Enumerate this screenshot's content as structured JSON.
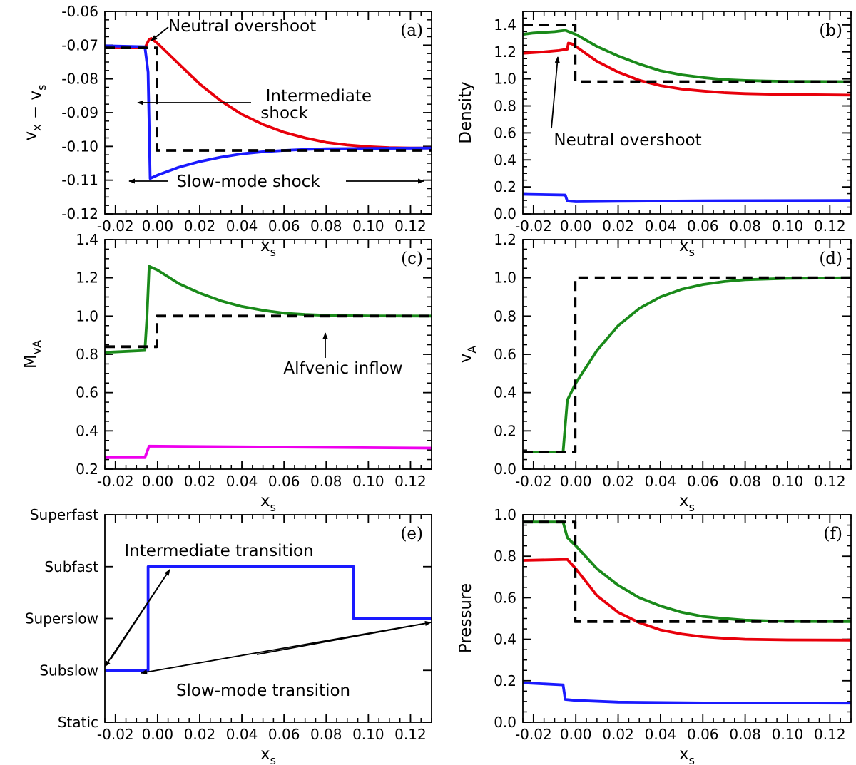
{
  "chart_data": [
    {
      "panel": "(a)",
      "type": "line",
      "ylabel": "v_x − v_s",
      "xlabel": "x_s",
      "xlim": [
        -0.025,
        0.13
      ],
      "ylim": [
        -0.12,
        -0.06
      ],
      "xticks": [
        -0.02,
        0.0,
        0.02,
        0.04,
        0.06,
        0.08,
        0.1,
        0.12
      ],
      "xtick_labels": [
        "-0.02",
        "0.00",
        "0.02",
        "0.04",
        "0.06",
        "0.08",
        "0.10",
        "0.12"
      ],
      "yticks": [
        -0.12,
        -0.11,
        -0.1,
        -0.09,
        -0.08,
        -0.07,
        -0.06
      ],
      "ytick_labels": [
        "-0.12",
        "-0.11",
        "-0.10",
        "-0.09",
        "-0.08",
        "-0.07",
        "-0.06"
      ],
      "series": [
        {
          "color": "#e8000b",
          "dash": "",
          "points": [
            [
              -0.025,
              -0.0708
            ],
            [
              -0.006,
              -0.0708
            ],
            [
              -0.004,
              -0.0683
            ],
            [
              -0.003,
              -0.068
            ],
            [
              0,
              -0.0695
            ],
            [
              0.01,
              -0.0755
            ],
            [
              0.02,
              -0.0815
            ],
            [
              0.03,
              -0.0865
            ],
            [
              0.04,
              -0.0905
            ],
            [
              0.05,
              -0.0935
            ],
            [
              0.06,
              -0.0958
            ],
            [
              0.07,
              -0.0975
            ],
            [
              0.08,
              -0.0988
            ],
            [
              0.09,
              -0.0996
            ],
            [
              0.1,
              -0.1001
            ],
            [
              0.11,
              -0.1004
            ],
            [
              0.12,
              -0.1005
            ],
            [
              0.13,
              -0.1005
            ]
          ]
        },
        {
          "color": "#1a1aff",
          "dash": "",
          "points": [
            [
              -0.025,
              -0.0702
            ],
            [
              -0.006,
              -0.0705
            ],
            [
              -0.0045,
              -0.078
            ],
            [
              -0.0035,
              -0.1095
            ],
            [
              0,
              -0.1085
            ],
            [
              0.01,
              -0.1062
            ],
            [
              0.02,
              -0.1045
            ],
            [
              0.03,
              -0.1032
            ],
            [
              0.04,
              -0.1022
            ],
            [
              0.05,
              -0.1016
            ],
            [
              0.06,
              -0.1012
            ],
            [
              0.07,
              -0.1009
            ],
            [
              0.08,
              -0.1007
            ],
            [
              0.1,
              -0.1006
            ],
            [
              0.13,
              -0.1005
            ]
          ]
        },
        {
          "color": "#000000",
          "dash": "14,9",
          "points": [
            [
              -0.025,
              -0.0708
            ],
            [
              -0.0003,
              -0.0708
            ],
            [
              -0.0003,
              -0.1012
            ],
            [
              0.13,
              -0.1012
            ]
          ]
        }
      ],
      "annotations": [
        "Neutral overshoot",
        "Intermediate",
        "shock",
        "Slow-mode shock"
      ]
    },
    {
      "panel": "(b)",
      "type": "line",
      "ylabel": "Density",
      "xlabel": "x_s",
      "xlim": [
        -0.025,
        0.13
      ],
      "ylim": [
        0,
        1.5
      ],
      "xticks": [
        -0.02,
        0.0,
        0.02,
        0.04,
        0.06,
        0.08,
        0.1,
        0.12
      ],
      "xtick_labels": [
        "-0.02",
        "0.00",
        "0.02",
        "0.04",
        "0.06",
        "0.08",
        "0.10",
        "0.12"
      ],
      "yticks": [
        0,
        0.2,
        0.4,
        0.6,
        0.8,
        1.0,
        1.2,
        1.4
      ],
      "ytick_labels": [
        "0.0",
        "0.2",
        "0.4",
        "0.6",
        "0.8",
        "1.0",
        "1.2",
        "1.4"
      ],
      "series": [
        {
          "color": "#1a8a1a",
          "dash": "",
          "points": [
            [
              -0.025,
              1.33
            ],
            [
              -0.02,
              1.34
            ],
            [
              -0.01,
              1.35
            ],
            [
              -0.005,
              1.36
            ],
            [
              0,
              1.33
            ],
            [
              0.01,
              1.24
            ],
            [
              0.02,
              1.17
            ],
            [
              0.03,
              1.11
            ],
            [
              0.04,
              1.06
            ],
            [
              0.05,
              1.03
            ],
            [
              0.06,
              1.01
            ],
            [
              0.07,
              0.995
            ],
            [
              0.08,
              0.988
            ],
            [
              0.09,
              0.984
            ],
            [
              0.1,
              0.982
            ],
            [
              0.13,
              0.98
            ]
          ]
        },
        {
          "color": "#e8000b",
          "dash": "",
          "points": [
            [
              -0.025,
              1.19
            ],
            [
              -0.015,
              1.2
            ],
            [
              -0.008,
              1.21
            ],
            [
              -0.004,
              1.22
            ],
            [
              -0.0035,
              1.265
            ],
            [
              -0.002,
              1.26
            ],
            [
              0,
              1.24
            ],
            [
              0.01,
              1.13
            ],
            [
              0.02,
              1.05
            ],
            [
              0.03,
              0.99
            ],
            [
              0.04,
              0.95
            ],
            [
              0.05,
              0.925
            ],
            [
              0.06,
              0.91
            ],
            [
              0.07,
              0.898
            ],
            [
              0.08,
              0.891
            ],
            [
              0.1,
              0.884
            ],
            [
              0.13,
              0.88
            ]
          ]
        },
        {
          "color": "#1a1aff",
          "dash": "",
          "points": [
            [
              -0.025,
              0.145
            ],
            [
              -0.005,
              0.14
            ],
            [
              -0.004,
              0.095
            ],
            [
              0,
              0.09
            ],
            [
              0.02,
              0.093
            ],
            [
              0.06,
              0.097
            ],
            [
              0.13,
              0.1
            ]
          ]
        },
        {
          "color": "#000000",
          "dash": "14,9",
          "points": [
            [
              -0.025,
              1.4
            ],
            [
              -0.0003,
              1.4
            ],
            [
              -0.0003,
              0.98
            ],
            [
              0.13,
              0.98
            ]
          ]
        }
      ],
      "annotations": [
        "Neutral overshoot"
      ]
    },
    {
      "panel": "(c)",
      "type": "line",
      "ylabel": "M_vA",
      "xlabel": "x_s",
      "xlim": [
        -0.025,
        0.13
      ],
      "ylim": [
        0.2,
        1.4
      ],
      "xticks": [
        -0.02,
        0.0,
        0.02,
        0.04,
        0.06,
        0.08,
        0.1,
        0.12
      ],
      "xtick_labels": [
        "-0.02",
        "0.00",
        "0.02",
        "0.04",
        "0.06",
        "0.08",
        "0.10",
        "0.12"
      ],
      "yticks": [
        0.2,
        0.4,
        0.6,
        0.8,
        1.0,
        1.2,
        1.4
      ],
      "ytick_labels": [
        "0.2",
        "0.4",
        "0.6",
        "0.8",
        "1.0",
        "1.2",
        "1.4"
      ],
      "series": [
        {
          "color": "#1a8a1a",
          "dash": "",
          "points": [
            [
              -0.025,
              0.81
            ],
            [
              -0.006,
              0.82
            ],
            [
              -0.005,
              1.0
            ],
            [
              -0.004,
              1.26
            ],
            [
              0,
              1.24
            ],
            [
              0.01,
              1.17
            ],
            [
              0.02,
              1.12
            ],
            [
              0.03,
              1.08
            ],
            [
              0.04,
              1.05
            ],
            [
              0.05,
              1.03
            ],
            [
              0.06,
              1.015
            ],
            [
              0.07,
              1.008
            ],
            [
              0.08,
              1.004
            ],
            [
              0.1,
              1.001
            ],
            [
              0.13,
              1.0
            ]
          ]
        },
        {
          "color": "#ee00ee",
          "dash": "",
          "points": [
            [
              -0.025,
              0.26
            ],
            [
              -0.006,
              0.26
            ],
            [
              -0.004,
              0.32
            ],
            [
              0.13,
              0.31
            ]
          ]
        },
        {
          "color": "#000000",
          "dash": "14,9",
          "points": [
            [
              -0.025,
              0.84
            ],
            [
              -0.0003,
              0.84
            ],
            [
              -0.0003,
              1.0
            ],
            [
              0.13,
              1.0
            ]
          ]
        }
      ],
      "annotations": [
        "Alfvenic inflow"
      ]
    },
    {
      "panel": "(d)",
      "type": "line",
      "ylabel": "v_A",
      "xlabel": "x_s",
      "xlim": [
        -0.025,
        0.13
      ],
      "ylim": [
        0,
        1.2
      ],
      "xticks": [
        -0.02,
        0.0,
        0.02,
        0.04,
        0.06,
        0.08,
        0.1,
        0.12
      ],
      "xtick_labels": [
        "-0.02",
        "0.00",
        "0.02",
        "0.04",
        "0.06",
        "0.08",
        "0.10",
        "0.12"
      ],
      "yticks": [
        0,
        0.2,
        0.4,
        0.6,
        0.8,
        1.0,
        1.2
      ],
      "ytick_labels": [
        "0.0",
        "0.2",
        "0.4",
        "0.6",
        "0.8",
        "1.0",
        "1.2"
      ],
      "series": [
        {
          "color": "#1a8a1a",
          "dash": "",
          "points": [
            [
              -0.025,
              0.09
            ],
            [
              -0.006,
              0.09
            ],
            [
              -0.004,
              0.36
            ],
            [
              0,
              0.45
            ],
            [
              0.01,
              0.62
            ],
            [
              0.02,
              0.75
            ],
            [
              0.03,
              0.84
            ],
            [
              0.04,
              0.9
            ],
            [
              0.05,
              0.94
            ],
            [
              0.06,
              0.965
            ],
            [
              0.07,
              0.98
            ],
            [
              0.08,
              0.99
            ],
            [
              0.1,
              0.997
            ],
            [
              0.13,
              1.0
            ]
          ]
        },
        {
          "color": "#000000",
          "dash": "14,9",
          "points": [
            [
              -0.025,
              0.09
            ],
            [
              -0.0003,
              0.09
            ],
            [
              -0.0003,
              1.0
            ],
            [
              0.13,
              1.0
            ]
          ]
        }
      ],
      "annotations": []
    },
    {
      "panel": "(e)",
      "type": "line",
      "xlabel": "x_s",
      "xlim": [
        -0.025,
        0.13
      ],
      "ylim": [
        0,
        4
      ],
      "xticks": [
        -0.02,
        0.0,
        0.02,
        0.04,
        0.06,
        0.08,
        0.1,
        0.12
      ],
      "xtick_labels": [
        "-0.02",
        "0.00",
        "0.02",
        "0.04",
        "0.06",
        "0.08",
        "0.10",
        "0.12"
      ],
      "yticks": [
        0,
        1,
        2,
        3,
        4
      ],
      "ytick_labels": [
        "Static",
        "Subslow",
        "Superslow",
        "Subfast",
        "Superfast"
      ],
      "series": [
        {
          "color": "#1a1aff",
          "dash": "",
          "points": [
            [
              -0.025,
              1
            ],
            [
              -0.0045,
              1
            ],
            [
              -0.0045,
              3
            ],
            [
              0.093,
              3
            ],
            [
              0.093,
              2
            ],
            [
              0.13,
              2
            ]
          ]
        }
      ],
      "annotations": [
        "Intermediate transition",
        "Slow-mode transition"
      ]
    },
    {
      "panel": "(f)",
      "type": "line",
      "ylabel": "Pressure",
      "xlabel": "x_s",
      "xlim": [
        -0.025,
        0.13
      ],
      "ylim": [
        0,
        1.0
      ],
      "xticks": [
        -0.02,
        0.0,
        0.02,
        0.04,
        0.06,
        0.08,
        0.1,
        0.12
      ],
      "xtick_labels": [
        "-0.02",
        "0.00",
        "0.02",
        "0.04",
        "0.06",
        "0.08",
        "0.10",
        "0.12"
      ],
      "yticks": [
        0,
        0.2,
        0.4,
        0.6,
        0.8,
        1.0
      ],
      "ytick_labels": [
        "0.0",
        "0.2",
        "0.4",
        "0.6",
        "0.8",
        "1.0"
      ],
      "series": [
        {
          "color": "#1a8a1a",
          "dash": "",
          "points": [
            [
              -0.025,
              0.965
            ],
            [
              -0.006,
              0.965
            ],
            [
              -0.004,
              0.89
            ],
            [
              0,
              0.85
            ],
            [
              0.01,
              0.74
            ],
            [
              0.02,
              0.66
            ],
            [
              0.03,
              0.6
            ],
            [
              0.04,
              0.56
            ],
            [
              0.05,
              0.53
            ],
            [
              0.06,
              0.51
            ],
            [
              0.07,
              0.5
            ],
            [
              0.08,
              0.492
            ],
            [
              0.1,
              0.486
            ],
            [
              0.13,
              0.485
            ]
          ]
        },
        {
          "color": "#e8000b",
          "dash": "",
          "points": [
            [
              -0.025,
              0.78
            ],
            [
              -0.004,
              0.785
            ],
            [
              0,
              0.74
            ],
            [
              0.01,
              0.61
            ],
            [
              0.02,
              0.53
            ],
            [
              0.03,
              0.48
            ],
            [
              0.04,
              0.445
            ],
            [
              0.05,
              0.425
            ],
            [
              0.06,
              0.412
            ],
            [
              0.07,
              0.405
            ],
            [
              0.08,
              0.4
            ],
            [
              0.1,
              0.397
            ],
            [
              0.13,
              0.396
            ]
          ]
        },
        {
          "color": "#1a1aff",
          "dash": "",
          "points": [
            [
              -0.025,
              0.19
            ],
            [
              -0.006,
              0.18
            ],
            [
              -0.005,
              0.11
            ],
            [
              0,
              0.105
            ],
            [
              0.02,
              0.097
            ],
            [
              0.06,
              0.093
            ],
            [
              0.13,
              0.092
            ]
          ]
        },
        {
          "color": "#000000",
          "dash": "14,9",
          "points": [
            [
              -0.025,
              0.965
            ],
            [
              -0.0003,
              0.965
            ],
            [
              -0.0003,
              0.485
            ],
            [
              0.13,
              0.485
            ]
          ]
        }
      ],
      "annotations": []
    }
  ]
}
